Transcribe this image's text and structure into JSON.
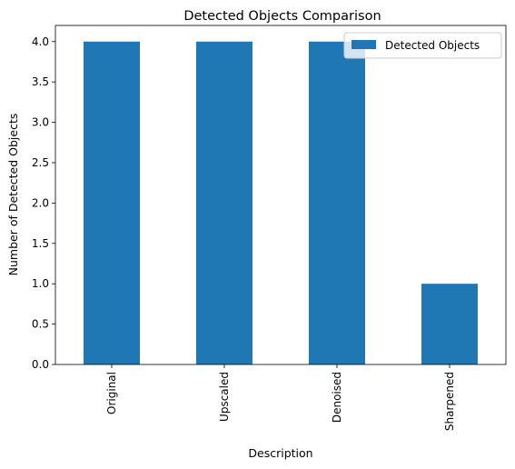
{
  "chart_data": {
    "type": "bar",
    "title": "Detected Objects Comparison",
    "xlabel": "Description",
    "ylabel": "Number of Detected Objects",
    "categories": [
      "Original",
      "Upscaled",
      "Denoised",
      "Sharpened"
    ],
    "series": [
      {
        "name": "Detected Objects",
        "values": [
          4,
          4,
          4,
          1
        ],
        "color": "#1f77b4"
      }
    ],
    "ylim": [
      0,
      4.2
    ],
    "yticks": [
      "0.0",
      "0.5",
      "1.0",
      "1.5",
      "2.0",
      "2.5",
      "3.0",
      "3.5",
      "4.0"
    ],
    "grid": false,
    "legend_position": "top-right",
    "xtick_rotation": "vertical"
  }
}
